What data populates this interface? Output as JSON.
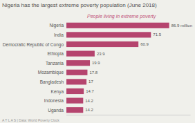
{
  "chart_data": {
    "type": "bar",
    "orientation": "horizontal",
    "title": "Nigeria has the largest extreme poverty population (June 2018)",
    "subtitle": "People living in extreme poverty",
    "annotations": [
      {
        "text": "A T L A S  |  Data: World Poverty Clock"
      }
    ],
    "categories": [
      "Nigeria",
      "India",
      "Democratic Republic of Congo",
      "Ethiopia",
      "Tanzania",
      "Mozambique",
      "Bangladesh",
      "Kenya",
      "Indonesia",
      "Uganda"
    ],
    "values": [
      86.9,
      71.5,
      60.9,
      23.9,
      19.9,
      17.8,
      17.0,
      14.7,
      14.2,
      14.2
    ],
    "value_labels": [
      "86.9 million",
      "71.5",
      "60.9",
      "23.9",
      "19.9",
      "17.8",
      "17",
      "14.7",
      "14.2",
      "14.2"
    ],
    "data_labels": true,
    "color": "#b5446e",
    "xlim": [
      0,
      105
    ],
    "tick_labels": "y",
    "grid": false
  }
}
